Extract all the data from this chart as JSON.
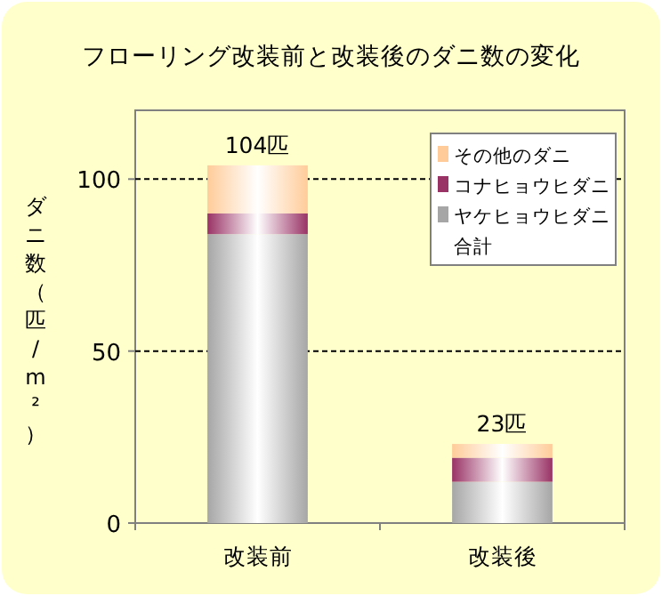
{
  "chart_data": {
    "type": "bar",
    "stacked": true,
    "title": "フローリング改装前と改装後のダニ数の変化",
    "ylabel": "ダニ数（匹/m²）",
    "categories": [
      "改装前",
      "改装後"
    ],
    "series": [
      {
        "name": "ヤケヒョウヒダニ",
        "color": "#a6a6a6",
        "values": [
          84,
          12
        ]
      },
      {
        "name": "コナヒョウヒダニ",
        "color": "#993366",
        "values": [
          6,
          7
        ]
      },
      {
        "name": "その他のダニ",
        "color": "#ffcc99",
        "values": [
          14,
          4
        ]
      }
    ],
    "totals": [
      "104匹",
      "23匹"
    ],
    "annotations": [
      "合計"
    ],
    "ylim": [
      0,
      120
    ],
    "yticks": [
      0,
      50,
      100
    ],
    "grid": "y",
    "legend": "top right"
  }
}
